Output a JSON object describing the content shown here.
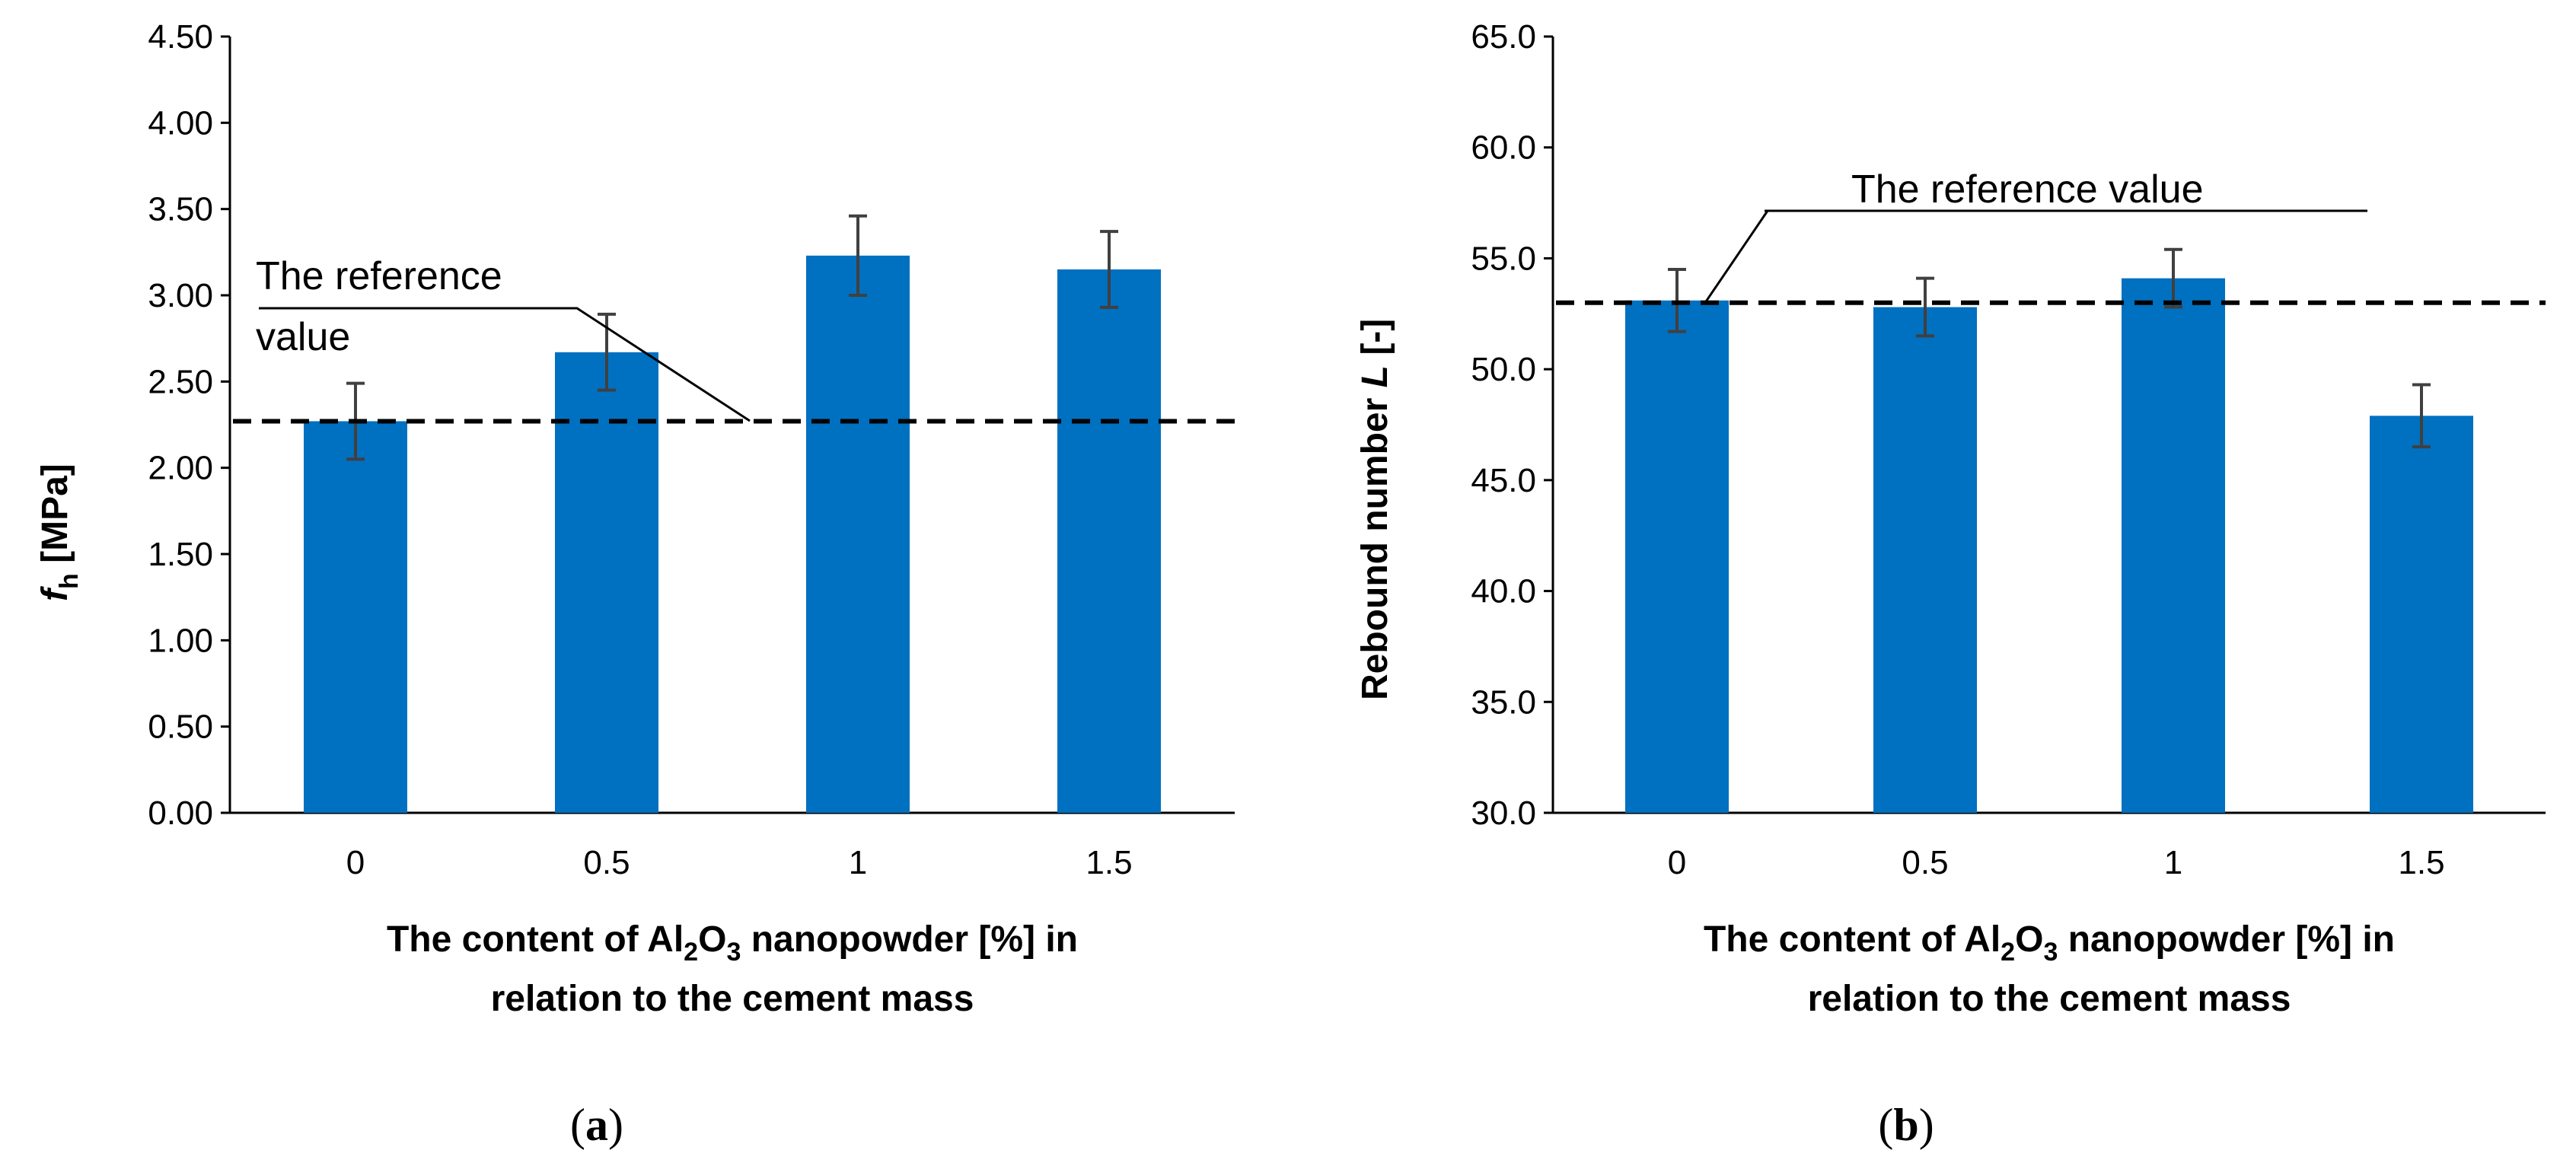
{
  "chart_data": [
    {
      "type": "bar",
      "panel_label": "a",
      "categories": [
        "0",
        "0.5",
        "1",
        "1.5"
      ],
      "values": [
        2.27,
        2.67,
        3.23,
        3.15
      ],
      "error": [
        0.22,
        0.22,
        0.23,
        0.22
      ],
      "reference_value": 2.27,
      "annotation": [
        "The reference",
        "value"
      ],
      "ylabel": {
        "symbol": "f",
        "subscript": "h",
        "unit": " [MPa]"
      },
      "xlabel": {
        "line1_before": "The content of Al",
        "sub1": "2",
        "mid": "O",
        "sub2": "3",
        "line1_after": " nanopowder [%] in",
        "line2": "relation to the cement mass"
      },
      "ylim": [
        0,
        4.5
      ],
      "yticks": [
        "0.00",
        "0.50",
        "1.00",
        "1.50",
        "2.00",
        "2.50",
        "3.00",
        "3.50",
        "4.00",
        "4.50"
      ],
      "bar_color": "#0070C0"
    },
    {
      "type": "bar",
      "panel_label": "b",
      "categories": [
        "0",
        "0.5",
        "1",
        "1.5"
      ],
      "values": [
        53.1,
        52.8,
        54.1,
        47.9
      ],
      "error": [
        1.4,
        1.3,
        1.3,
        1.4
      ],
      "reference_value": 53.0,
      "annotation": [
        "The reference value"
      ],
      "ylabel": {
        "before": "Rebound number ",
        "symbol": "L",
        "after": " [-]"
      },
      "xlabel": {
        "line1_before": "The content of Al",
        "sub1": "2",
        "mid": "O",
        "sub2": "3",
        "line1_after": " nanopowder [%] in",
        "line2": "relation to the cement mass"
      },
      "ylim": [
        30,
        65
      ],
      "yticks": [
        "30.0",
        "35.0",
        "40.0",
        "45.0",
        "50.0",
        "55.0",
        "60.0",
        "65.0"
      ],
      "bar_color": "#0070C0"
    }
  ]
}
